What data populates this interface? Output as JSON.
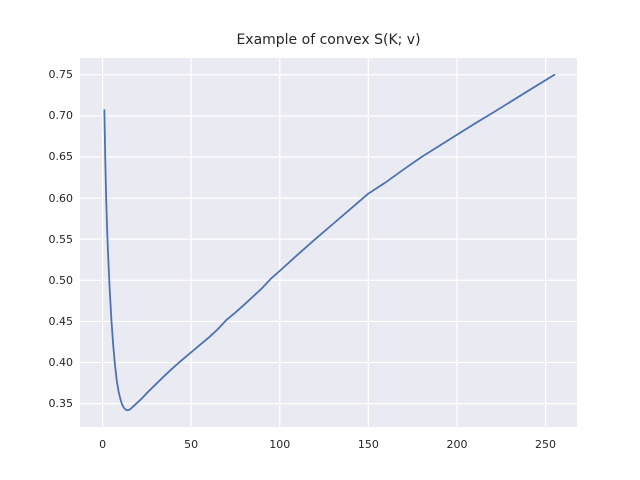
{
  "figure": {
    "background": "#ffffff"
  },
  "chart_data": {
    "type": "line",
    "title": "Example of convex S(K; v)",
    "xlabel": "",
    "ylabel": "",
    "xlim": [
      -12.75,
      267.75
    ],
    "ylim": [
      0.3216,
      0.7704
    ],
    "grid": true,
    "legend": false,
    "xticks": {
      "values": [
        0,
        50,
        100,
        150,
        200,
        250
      ],
      "labels": [
        "0",
        "50",
        "100",
        "150",
        "200",
        "250"
      ]
    },
    "yticks": {
      "values": [
        0.35,
        0.4,
        0.45,
        0.5,
        0.55,
        0.6,
        0.65,
        0.7,
        0.75
      ],
      "labels": [
        "0.35",
        "0.40",
        "0.45",
        "0.50",
        "0.55",
        "0.60",
        "0.65",
        "0.70",
        "0.75"
      ]
    },
    "style": {
      "axes_background": "#eaeaf2",
      "grid_color": "#ffffff",
      "line_color": "#4c72b0",
      "text_color": "#262626"
    },
    "series": [
      {
        "name": "S(K; v)",
        "color": "#4c72b0",
        "x": [
          1,
          1.5,
          2,
          2.5,
          3,
          4,
          5,
          6,
          7,
          8,
          9,
          10,
          11,
          12,
          13,
          14,
          15,
          16,
          18,
          20,
          22,
          25,
          30,
          35,
          40,
          45,
          50,
          55,
          60,
          65,
          70,
          75,
          80,
          85,
          90,
          95,
          100,
          110,
          120,
          130,
          140,
          150,
          160,
          170,
          180,
          190,
          200,
          210,
          220,
          230,
          240,
          255
        ],
        "y": [
          0.707,
          0.648,
          0.601,
          0.566,
          0.536,
          0.489,
          0.451,
          0.421,
          0.397,
          0.378,
          0.365,
          0.356,
          0.349,
          0.345,
          0.3428,
          0.342,
          0.3425,
          0.344,
          0.348,
          0.352,
          0.356,
          0.363,
          0.3735,
          0.384,
          0.394,
          0.4035,
          0.4125,
          0.4215,
          0.4305,
          0.4405,
          0.452,
          0.461,
          0.4705,
          0.4805,
          0.4905,
          0.502,
          0.5115,
          0.531,
          0.55,
          0.5685,
          0.587,
          0.6055,
          0.6195,
          0.635,
          0.65,
          0.6635,
          0.677,
          0.6905,
          0.7035,
          0.7168,
          0.7302,
          0.75
        ]
      }
    ]
  }
}
